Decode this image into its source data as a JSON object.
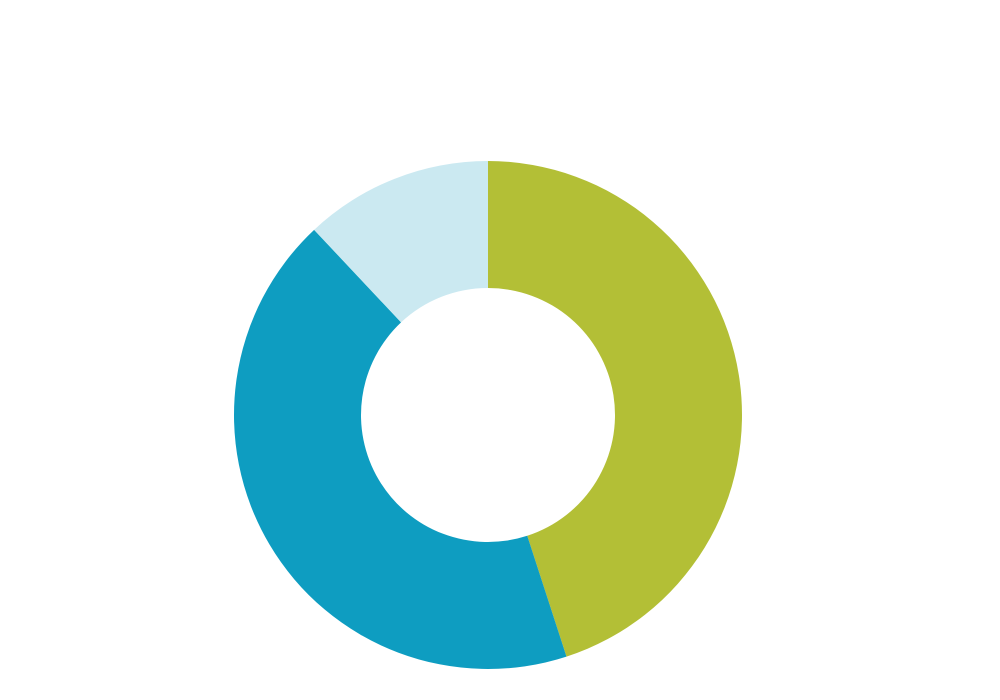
{
  "chart_data": {
    "type": "donut",
    "values": [
      45,
      43,
      12
    ],
    "colors": [
      "#b3bf36",
      "#0e9dc1",
      "#cbe9f1"
    ]
  }
}
